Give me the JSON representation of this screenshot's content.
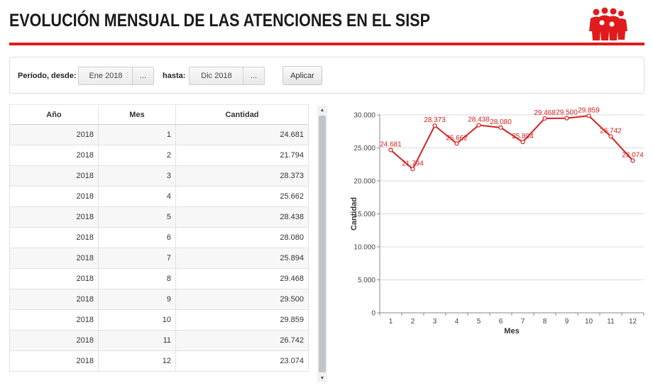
{
  "header": {
    "title": "EVOLUCIÓN MENSUAL DE LAS ATENCIONES EN EL SISP",
    "logo_icon": "people-group-icon",
    "accent_color": "#e01b1b"
  },
  "filters": {
    "from_label": "Período, desde:",
    "from_value": "Ene 2018",
    "to_label": "hasta:",
    "to_value": "Dic 2018",
    "picker_label": "...",
    "apply_label": "Aplicar"
  },
  "table": {
    "headers": [
      "Año",
      "Mes",
      "Cantidad"
    ],
    "rows": [
      [
        "2018",
        "1",
        "24.681"
      ],
      [
        "2018",
        "2",
        "21.794"
      ],
      [
        "2018",
        "3",
        "28.373"
      ],
      [
        "2018",
        "4",
        "25.662"
      ],
      [
        "2018",
        "5",
        "28.438"
      ],
      [
        "2018",
        "6",
        "28.080"
      ],
      [
        "2018",
        "7",
        "25.894"
      ],
      [
        "2018",
        "8",
        "29.468"
      ],
      [
        "2018",
        "9",
        "29.500"
      ],
      [
        "2018",
        "10",
        "29.859"
      ],
      [
        "2018",
        "11",
        "26.742"
      ],
      [
        "2018",
        "12",
        "23.074"
      ]
    ]
  },
  "chart_data": {
    "type": "line",
    "x": [
      1,
      2,
      3,
      4,
      5,
      6,
      7,
      8,
      9,
      10,
      11,
      12
    ],
    "values": [
      24681,
      21794,
      28373,
      25662,
      28438,
      28080,
      25894,
      29468,
      29500,
      29859,
      26742,
      23074
    ],
    "data_labels": [
      "24.681",
      "21.794",
      "28.373",
      "25.662",
      "28.438",
      "28.080",
      "25.894",
      "29.468",
      "29.500",
      "29.859",
      "26.742",
      "23.074"
    ],
    "xlabel": "Mes",
    "ylabel": "Cantidad",
    "ylim": [
      0,
      30000
    ],
    "yticks": [
      0,
      5000,
      10000,
      15000,
      20000,
      25000,
      30000
    ],
    "ytick_labels": [
      "0",
      "5.000",
      "10.000",
      "15.000",
      "20.000",
      "25.000",
      "30.000"
    ],
    "xtick_labels": [
      "1",
      "2",
      "3",
      "4",
      "5",
      "6",
      "7",
      "8",
      "9",
      "10",
      "11",
      "12"
    ],
    "grid": true,
    "line_color": "#d42020"
  }
}
